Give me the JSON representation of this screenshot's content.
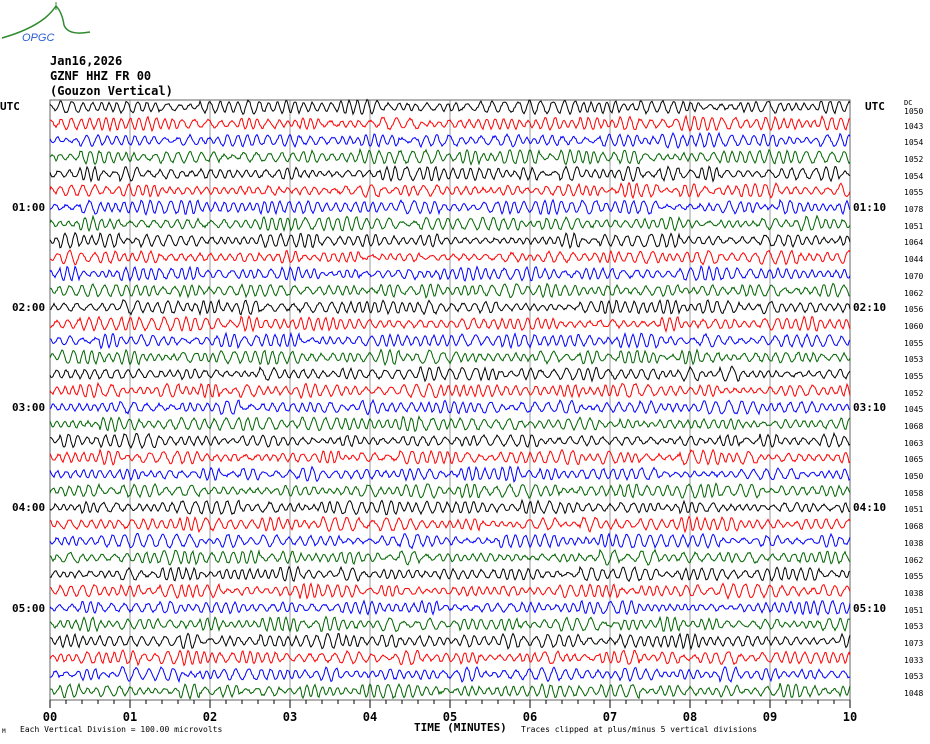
{
  "logo_text": "OPGC",
  "header": {
    "date": "Jan16,2026",
    "station": "GZNF HHZ FR 00",
    "location": "(Gouzon Vertical)"
  },
  "left_utc_label": "UTC",
  "right_utc_label": "UTC",
  "dc_label": "DC",
  "footer": {
    "scale_note": "Each Vertical Division =  100.00 microvolts",
    "clip_note": "Traces clipped at plus/minus 5 vertical divisions",
    "corner_mark": "M"
  },
  "chart_data": {
    "type": "line",
    "title": "GZNF HHZ FR 00 (Gouzon Vertical) Jan16,2026",
    "xlabel": "TIME (MINUTES)",
    "xlim": [
      0,
      10
    ],
    "x_ticks": [
      "00",
      "01",
      "02",
      "03",
      "04",
      "05",
      "06",
      "07",
      "08",
      "09",
      "10"
    ],
    "trace_colors": [
      "#000000",
      "#ff0000",
      "#0000ff",
      "#006400"
    ],
    "minutes_per_trace": 10,
    "left_hour_labels": [
      {
        "row": 6,
        "text": "01:00"
      },
      {
        "row": 12,
        "text": "02:00"
      },
      {
        "row": 18,
        "text": "03:00"
      },
      {
        "row": 24,
        "text": "04:00"
      },
      {
        "row": 30,
        "text": "05:00"
      }
    ],
    "right_hour_labels": [
      {
        "row": 6,
        "text": "01:10"
      },
      {
        "row": 12,
        "text": "02:10"
      },
      {
        "row": 18,
        "text": "03:10"
      },
      {
        "row": 24,
        "text": "04:10"
      },
      {
        "row": 30,
        "text": "05:10"
      }
    ],
    "dc_offsets": [
      "1050",
      "1043",
      "1054",
      "1052",
      "1054",
      "1055",
      "1078",
      "1051",
      "1064",
      "1044",
      "1070",
      "1062",
      "1056",
      "1060",
      "1055",
      "1053",
      "1055",
      "1052",
      "1045",
      "1068",
      "1063",
      "1065",
      "1050",
      "1058",
      "1051",
      "1068",
      "1038",
      "1062",
      "1055",
      "1038",
      "1051",
      "1053",
      "1073",
      "1033",
      "1053",
      "1048"
    ]
  }
}
